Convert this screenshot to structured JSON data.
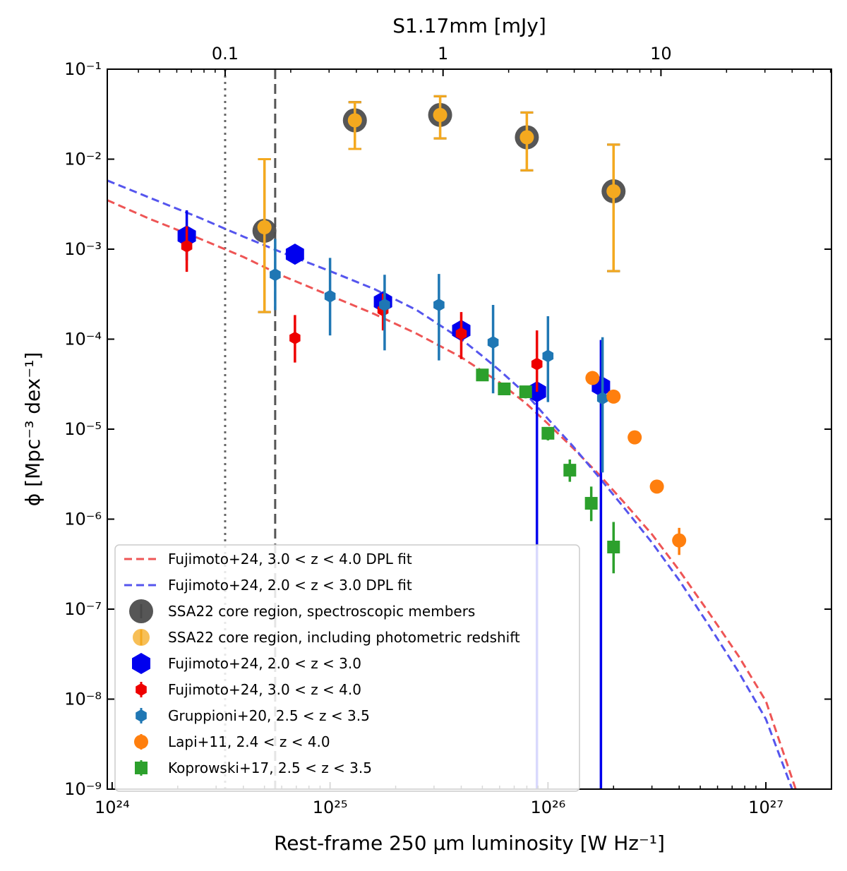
{
  "chart_data": {
    "type": "scatter",
    "title": "",
    "xlabel": "Rest-frame 250 μm luminosity [W Hz⁻¹]",
    "ylabel": "ϕ [Mpc⁻³ dex⁻¹]",
    "top_xlabel": "S1.17mm [mJy]",
    "x_scale": "log",
    "y_scale": "log",
    "xlim": [
      9.5e+23,
      2e+27
    ],
    "ylim": [
      1e-09,
      0.1
    ],
    "x_ticks": [
      {
        "value": 1e+24,
        "label": "10²⁴"
      },
      {
        "value": 1e+25,
        "label": "10²⁵"
      },
      {
        "value": 1e+26,
        "label": "10²⁶"
      },
      {
        "value": 1e+27,
        "label": "10²⁷"
      }
    ],
    "y_ticks": [
      {
        "value": 1e-09,
        "label": "10⁻⁹"
      },
      {
        "value": 1e-08,
        "label": "10⁻⁸"
      },
      {
        "value": 1e-07,
        "label": "10⁻⁷"
      },
      {
        "value": 1e-06,
        "label": "10⁻⁶"
      },
      {
        "value": 1e-05,
        "label": "10⁻⁵"
      },
      {
        "value": 0.0001,
        "label": "10⁻⁴"
      },
      {
        "value": 0.001,
        "label": "10⁻³"
      },
      {
        "value": 0.01,
        "label": "10⁻²"
      },
      {
        "value": 0.1,
        "label": "10⁻¹"
      }
    ],
    "top_ticks": [
      {
        "value": 3.3e+24,
        "label": "0.1"
      },
      {
        "value": 3.3e+25,
        "label": "1"
      },
      {
        "value": 3.3e+26,
        "label": "10"
      }
    ],
    "vlines": [
      {
        "name": "dotted-limit-line",
        "x": 3.3e+24,
        "style": "dotted",
        "color": "#666666"
      },
      {
        "name": "dashed-limit-line",
        "x": 5.6e+24,
        "style": "dashed",
        "color": "#555555"
      }
    ],
    "curves": [
      {
        "name": "Fujimoto+24, 3.0 < z < 4.0 DPL fit",
        "color": "#ee5555",
        "x": [
          9.5e+23,
          1.5e+24,
          2.5e+24,
          4e+24,
          6e+24,
          1e+25,
          1.6e+25,
          2.5e+25,
          4e+25,
          6e+25,
          8e+25,
          1e+26,
          1.3e+26,
          1.7e+26,
          2.2e+26,
          3e+26,
          4e+26,
          5.5e+26,
          7.5e+26,
          1e+27,
          1.37e+27
        ],
        "y": [
          0.0035,
          0.00215,
          0.00132,
          0.00082,
          0.00051,
          0.000305,
          0.00019,
          0.000115,
          6.3e-05,
          3.3e-05,
          1.9e-05,
          1.15e-05,
          6.2e-06,
          3.2e-06,
          1.6e-06,
          6.8e-07,
          2.7e-07,
          9e-08,
          3e-08,
          9.5e-09,
          1e-09
        ]
      },
      {
        "name": "Fujimoto+24, 2.0 < z < 3.0 DPL fit",
        "color": "#5555ee",
        "x": [
          9.5e+23,
          1.5e+24,
          2.5e+24,
          4e+24,
          6e+24,
          1e+25,
          1.6e+25,
          2.5e+25,
          4e+25,
          5e+25,
          6e+25,
          8e+25,
          1e+26,
          1.3e+26,
          1.7e+26,
          2.2e+26,
          3e+26,
          4e+26,
          5.5e+26,
          7.5e+26,
          1e+27,
          1.32e+27
        ],
        "y": [
          0.0058,
          0.0037,
          0.00225,
          0.00138,
          0.00092,
          0.00057,
          0.00036,
          0.00021,
          0.0001,
          6.5e-05,
          4.5e-05,
          2.4e-05,
          1.3e-05,
          6.5e-06,
          3e-06,
          1.4e-06,
          5.5e-07,
          2.1e-07,
          6.5e-08,
          2e-08,
          6e-09,
          1e-09
        ]
      }
    ],
    "series": [
      {
        "name": "SSA22 core region, spectroscopic members",
        "marker": "big-circle",
        "color": "#4d4d4d",
        "err_color": "#000000",
        "points": [
          {
            "x": 5e+24,
            "y": 0.0016,
            "ylo": 0.0002,
            "yhi": 0.01
          },
          {
            "x": 1.3e+25,
            "y": 0.027,
            "ylo": 0.013,
            "yhi": 0.043
          },
          {
            "x": 3.2e+25,
            "y": 0.031,
            "ylo": 0.017,
            "yhi": 0.05
          },
          {
            "x": 8e+25,
            "y": 0.0175,
            "ylo": 0.0075,
            "yhi": 0.033
          },
          {
            "x": 2e+26,
            "y": 0.0044,
            "ylo": 0.00057,
            "yhi": 0.0145
          }
        ]
      },
      {
        "name": "SSA22 core region, including photometric redshift",
        "marker": "circle",
        "color": "#f4a91f",
        "err_color": "#f4a91f",
        "points": [
          {
            "x": 5e+24,
            "y": 0.00175,
            "ylo": 0.0002,
            "yhi": 0.01
          },
          {
            "x": 1.3e+25,
            "y": 0.027,
            "ylo": 0.013,
            "yhi": 0.043
          },
          {
            "x": 3.2e+25,
            "y": 0.031,
            "ylo": 0.017,
            "yhi": 0.05
          },
          {
            "x": 8e+25,
            "y": 0.0175,
            "ylo": 0.0075,
            "yhi": 0.033
          },
          {
            "x": 2e+26,
            "y": 0.0044,
            "ylo": 0.00057,
            "yhi": 0.0145
          }
        ]
      },
      {
        "name": "Fujimoto+24, 2.0 < z < 3.0",
        "marker": "big-hexagon",
        "color": "#0000ee",
        "err_color": "#0000ee",
        "points": [
          {
            "x": 2.2e+24,
            "y": 0.0014,
            "ylo": 0.00075,
            "yhi": 0.0027
          },
          {
            "x": 6.9e+24,
            "y": 0.00088,
            "ylo": 0.0008,
            "yhi": 0.00095
          },
          {
            "x": 1.75e+25,
            "y": 0.00026,
            "ylo": 0.00022,
            "yhi": 0.00031
          },
          {
            "x": 4e+25,
            "y": 0.000125,
            "ylo": 9.5e-05,
            "yhi": 0.00016
          },
          {
            "x": 8.9e+25,
            "y": 2.6e-05,
            "ylo": 1e-09,
            "yhi": 3e-05
          },
          {
            "x": 1.75e+26,
            "y": 3e-05,
            "ylo": 1e-09,
            "yhi": 9.8e-05
          }
        ]
      },
      {
        "name": "Fujimoto+24, 3.0 < z < 4.0",
        "marker": "hexagon",
        "color": "#ee0000",
        "err_color": "#ee0000",
        "points": [
          {
            "x": 2.2e+24,
            "y": 0.00108,
            "ylo": 0.00056,
            "yhi": 0.0018
          },
          {
            "x": 6.9e+24,
            "y": 0.000103,
            "ylo": 5.5e-05,
            "yhi": 0.000185
          },
          {
            "x": 1.75e+25,
            "y": 0.00021,
            "ylo": 0.000125,
            "yhi": 0.00032
          },
          {
            "x": 4e+25,
            "y": 0.000115,
            "ylo": 6e-05,
            "yhi": 0.0002
          },
          {
            "x": 8.9e+25,
            "y": 5.3e-05,
            "ylo": 2.6e-05,
            "yhi": 0.000125
          }
        ]
      },
      {
        "name": "Gruppioni+20, 2.5 < z < 3.5",
        "marker": "hexagon",
        "color": "#1f77b4",
        "err_color": "#1f77b4",
        "points": [
          {
            "x": 5.6e+24,
            "y": 0.00052,
            "ylo": 0.00021,
            "yhi": 0.0013
          },
          {
            "x": 1e+25,
            "y": 0.0003,
            "ylo": 0.00011,
            "yhi": 0.0008
          },
          {
            "x": 1.78e+25,
            "y": 0.00024,
            "ylo": 7.5e-05,
            "yhi": 0.00052
          },
          {
            "x": 3.16e+25,
            "y": 0.00024,
            "ylo": 5.8e-05,
            "yhi": 0.00053
          },
          {
            "x": 5.6e+25,
            "y": 9.2e-05,
            "ylo": 2.5e-05,
            "yhi": 0.00024
          },
          {
            "x": 1e+26,
            "y": 6.5e-05,
            "ylo": 2e-05,
            "yhi": 0.00018
          },
          {
            "x": 1.78e+26,
            "y": 2.2e-05,
            "ylo": 3.3e-06,
            "yhi": 0.000105
          }
        ]
      },
      {
        "name": "Lapi+11, 2.4 < z < 4.0",
        "marker": "circle",
        "color": "#ff7f0e",
        "err_color": "#ff7f0e",
        "points": [
          {
            "x": 1.6e+26,
            "y": 3.7e-05,
            "ylo": 3.7e-05,
            "yhi": 3.7e-05
          },
          {
            "x": 2e+26,
            "y": 2.3e-05,
            "ylo": 2.3e-05,
            "yhi": 2.3e-05
          },
          {
            "x": 2.5e+26,
            "y": 8.1e-06,
            "ylo": 8.1e-06,
            "yhi": 8.1e-06
          },
          {
            "x": 3.16e+26,
            "y": 2.3e-06,
            "ylo": 2.3e-06,
            "yhi": 2.3e-06
          },
          {
            "x": 4e+26,
            "y": 5.8e-07,
            "ylo": 4e-07,
            "yhi": 8e-07
          }
        ]
      },
      {
        "name": "Koprowski+17, 2.5 < z < 3.5",
        "marker": "square",
        "color": "#2ca02c",
        "err_color": "#2ca02c",
        "points": [
          {
            "x": 5e+25,
            "y": 4e-05,
            "ylo": 3.5e-05,
            "yhi": 4.5e-05
          },
          {
            "x": 6.3e+25,
            "y": 2.8e-05,
            "ylo": 2.4e-05,
            "yhi": 3.2e-05
          },
          {
            "x": 7.9e+25,
            "y": 2.6e-05,
            "ylo": 2.2e-05,
            "yhi": 3e-05
          },
          {
            "x": 1e+26,
            "y": 9e-06,
            "ylo": 7.5e-06,
            "yhi": 1.05e-05
          },
          {
            "x": 1.26e+26,
            "y": 3.5e-06,
            "ylo": 2.6e-06,
            "yhi": 4.6e-06
          },
          {
            "x": 1.58e+26,
            "y": 1.5e-06,
            "ylo": 9.5e-07,
            "yhi": 2.3e-06
          },
          {
            "x": 2e+26,
            "y": 4.9e-07,
            "ylo": 2.5e-07,
            "yhi": 9.3e-07
          }
        ]
      }
    ],
    "legend": {
      "position": "lower-left",
      "entries": [
        {
          "label": "Fujimoto+24, 3.0 < z < 4.0 DPL fit",
          "kind": "line",
          "color": "#ee5555"
        },
        {
          "label": "Fujimoto+24, 2.0 < z < 3.0 DPL fit",
          "kind": "line",
          "color": "#5555ee"
        },
        {
          "label": "SSA22 core region, spectroscopic members",
          "kind": "big-circle",
          "color": "#4d4d4d"
        },
        {
          "label": "SSA22 core region, including photometric redshift",
          "kind": "circle",
          "color": "#f4a91f"
        },
        {
          "label": "Fujimoto+24, 2.0 < z < 3.0",
          "kind": "big-hexagon",
          "color": "#0000ee"
        },
        {
          "label": "Fujimoto+24, 3.0 < z < 4.0",
          "kind": "hexagon",
          "color": "#ee0000"
        },
        {
          "label": "Gruppioni+20, 2.5 < z < 3.5",
          "kind": "hexagon",
          "color": "#1f77b4"
        },
        {
          "label": "Lapi+11, 2.4 < z < 4.0",
          "kind": "circle",
          "color": "#ff7f0e"
        },
        {
          "label": "Koprowski+17, 2.5 < z < 3.5",
          "kind": "square",
          "color": "#2ca02c"
        }
      ]
    }
  }
}
